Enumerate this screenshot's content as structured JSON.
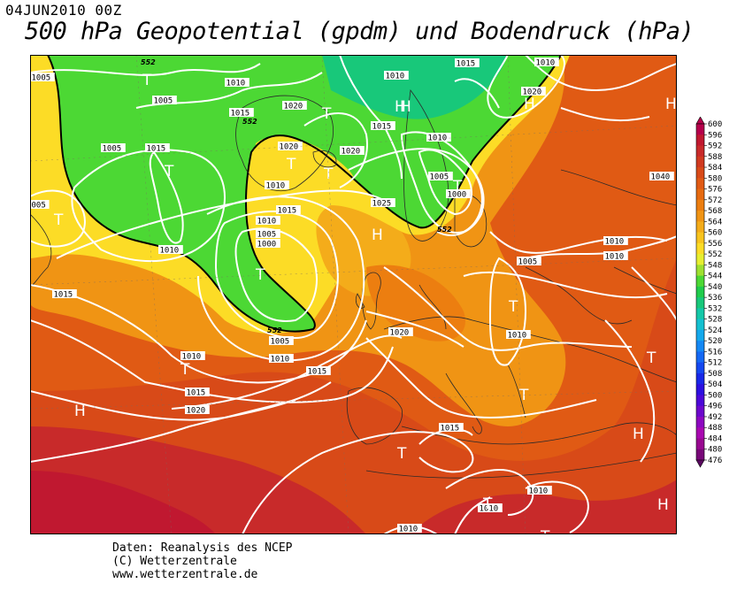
{
  "header": {
    "date": "04JUN2010 00Z",
    "title": "500 hPa Geopotential (gpdm) und Bodendruck (hPa)"
  },
  "map": {
    "region": "North Atlantic / Europe",
    "isobar_labels": [
      {
        "text": "1005",
        "pos": "top-left"
      },
      {
        "text": "1005",
        "pos": "Greenland north"
      },
      {
        "text": "1010",
        "pos": "Greenland north"
      },
      {
        "text": "1015",
        "pos": "Greenland"
      },
      {
        "text": "1020",
        "pos": "Greenland"
      },
      {
        "text": "1010",
        "pos": "Arctic"
      },
      {
        "text": "1015",
        "pos": "Arctic"
      },
      {
        "text": "1010",
        "pos": "Arctic east"
      },
      {
        "text": "1020",
        "pos": "Svalbard"
      },
      {
        "text": "1015",
        "pos": "Barents"
      },
      {
        "text": "1010",
        "pos": "Baffin"
      },
      {
        "text": "1005",
        "pos": "Baffin"
      },
      {
        "text": "1015",
        "pos": "Iceland"
      },
      {
        "text": "1020",
        "pos": "Iceland"
      },
      {
        "text": "1020",
        "pos": "Iceland south"
      },
      {
        "text": "1010",
        "pos": "Norwegian Sea"
      },
      {
        "text": "1005",
        "pos": "Norwegian Sea"
      },
      {
        "text": "1000",
        "pos": "Norwegian Sea"
      },
      {
        "text": "1025",
        "pos": "North Sea"
      },
      {
        "text": "1040",
        "pos": "Russia"
      },
      {
        "text": "1015",
        "pos": "Atlantic"
      },
      {
        "text": "1010",
        "pos": "Atlantic"
      },
      {
        "text": "1005",
        "pos": "Atlantic"
      },
      {
        "text": "1000",
        "pos": "Atlantic low"
      },
      {
        "text": "1010",
        "pos": "Labrador"
      },
      {
        "text": "005",
        "pos": "left edge"
      },
      {
        "text": "1015",
        "pos": "west Atlantic"
      },
      {
        "text": "1005",
        "pos": "Atlantic low south"
      },
      {
        "text": "1010",
        "pos": "Atlantic south"
      },
      {
        "text": "1015",
        "pos": "Atlantic south"
      },
      {
        "text": "1020",
        "pos": "Ireland"
      },
      {
        "text": "1010",
        "pos": "Azores"
      },
      {
        "text": "1015",
        "pos": "Azores"
      },
      {
        "text": "1020",
        "pos": "Azores"
      },
      {
        "text": "1005",
        "pos": "Poland"
      },
      {
        "text": "1010",
        "pos": "Russia"
      },
      {
        "text": "1010",
        "pos": "Russia"
      },
      {
        "text": "1010",
        "pos": "Balkans"
      },
      {
        "text": "1015",
        "pos": "Mediterranean"
      },
      {
        "text": "1010",
        "pos": "North Africa"
      },
      {
        "text": "1010",
        "pos": "North Africa"
      },
      {
        "text": "1010",
        "pos": "North Africa south"
      }
    ],
    "pressure_centres": [
      {
        "kind": "H"
      },
      {
        "kind": "H"
      },
      {
        "kind": "H"
      },
      {
        "kind": "H"
      },
      {
        "kind": "H"
      },
      {
        "kind": "H"
      },
      {
        "kind": "H"
      },
      {
        "kind": "H"
      },
      {
        "kind": "T"
      },
      {
        "kind": "T"
      },
      {
        "kind": "T"
      },
      {
        "kind": "T"
      },
      {
        "kind": "T"
      },
      {
        "kind": "T"
      },
      {
        "kind": "T"
      },
      {
        "kind": "T"
      },
      {
        "kind": "T"
      },
      {
        "kind": "T"
      },
      {
        "kind": "T"
      },
      {
        "kind": "T"
      },
      {
        "kind": "T"
      },
      {
        "kind": "T"
      },
      {
        "kind": "T"
      }
    ],
    "contour_labels_552": [
      "552",
      "552",
      "552",
      "552"
    ]
  },
  "legend": {
    "levels": [
      "600",
      "596",
      "592",
      "588",
      "584",
      "580",
      "576",
      "572",
      "568",
      "564",
      "560",
      "556",
      "552",
      "548",
      "544",
      "540",
      "536",
      "532",
      "528",
      "524",
      "520",
      "516",
      "512",
      "508",
      "504",
      "500",
      "496",
      "492",
      "488",
      "484",
      "480",
      "476"
    ],
    "colors": [
      "#b5004b",
      "#c01830",
      "#c82a2a",
      "#d03a20",
      "#d84a18",
      "#e05a14",
      "#e66a10",
      "#ec7e10",
      "#f09414",
      "#f4ac1a",
      "#f8c41e",
      "#fcdc26",
      "#e6ee30",
      "#9ee030",
      "#4cd834",
      "#20cc4c",
      "#18c87a",
      "#14c8a8",
      "#14c0d0",
      "#14a8ec",
      "#1488f4",
      "#1468f4",
      "#1448f0",
      "#1828e8",
      "#2c10e0",
      "#4c08d8",
      "#6c08cc",
      "#8c08c0",
      "#a808b0",
      "#980890",
      "#780878",
      "#5a0860"
    ]
  },
  "credits": {
    "line1": "Daten: Reanalysis des NCEP",
    "line2": "(C) Wetterzentrale",
    "line3": "www.wetterzentrale.de"
  }
}
